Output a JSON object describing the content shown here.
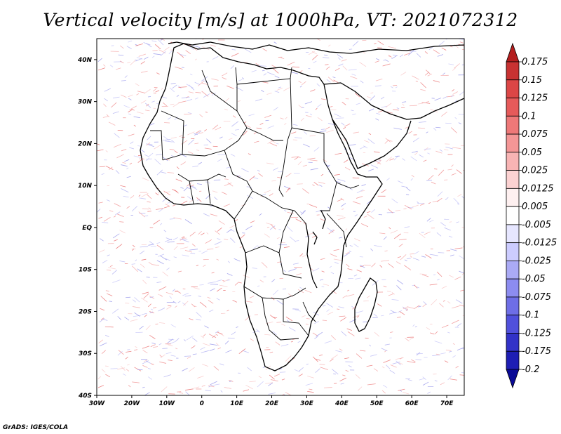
{
  "title": "Vertical velocity [m/s] at 1000hPa, VT: 2021072312",
  "credit": "GrADS: IGES/COLA",
  "map": {
    "lon_range": [
      -30,
      75
    ],
    "lat_range": [
      -40,
      45
    ],
    "lon_ticks": [
      {
        "value": -30,
        "label": "30W"
      },
      {
        "value": -20,
        "label": "20W"
      },
      {
        "value": -10,
        "label": "10W"
      },
      {
        "value": 0,
        "label": "0"
      },
      {
        "value": 10,
        "label": "10E"
      },
      {
        "value": 20,
        "label": "20E"
      },
      {
        "value": 30,
        "label": "30E"
      },
      {
        "value": 40,
        "label": "40E"
      },
      {
        "value": 50,
        "label": "50E"
      },
      {
        "value": 60,
        "label": "60E"
      },
      {
        "value": 70,
        "label": "70E"
      }
    ],
    "lat_ticks": [
      {
        "value": 40,
        "label": "40N"
      },
      {
        "value": 30,
        "label": "30N"
      },
      {
        "value": 20,
        "label": "20N"
      },
      {
        "value": 10,
        "label": "10N"
      },
      {
        "value": 0,
        "label": "EQ"
      },
      {
        "value": -10,
        "label": "10S"
      },
      {
        "value": -20,
        "label": "20S"
      },
      {
        "value": -30,
        "label": "30S"
      },
      {
        "value": -40,
        "label": "40S"
      }
    ]
  },
  "colorbar": {
    "labels": [
      "0.175",
      "0.15",
      "0.125",
      "0.1",
      "0.075",
      "0.05",
      "0.025",
      "0.0125",
      "0.005",
      "-0.005",
      "-0.0125",
      "-0.025",
      "-0.05",
      "-0.075",
      "-0.1",
      "-0.125",
      "-0.175",
      "-0.2"
    ],
    "colors": [
      "#b41e1e",
      "#c83232",
      "#dc4646",
      "#e65a5a",
      "#ee7878",
      "#f49696",
      "#f8b4b4",
      "#fcd2d2",
      "#fef0f0",
      "#ffffff",
      "#e6e6ff",
      "#ccccff",
      "#aaaaf5",
      "#8c8cf0",
      "#6e6ee6",
      "#5050dc",
      "#3232c8",
      "#1e1eb4",
      "#0a0a96"
    ]
  }
}
